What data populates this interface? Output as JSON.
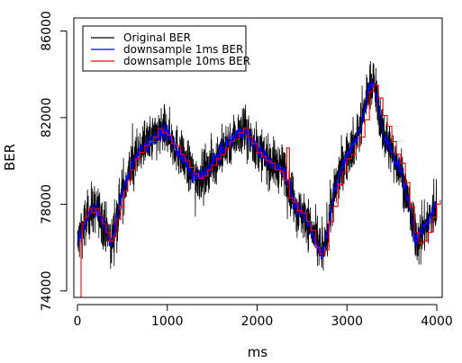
{
  "chart_data": {
    "type": "line",
    "title": "",
    "xlabel": "ms",
    "ylabel": "BER",
    "xlim": [
      -40,
      4060
    ],
    "ylim": [
      73700,
      86600
    ],
    "x_ticks": [
      0,
      1000,
      2000,
      3000,
      4000
    ],
    "x_tick_labels": [
      "0",
      "1000",
      "2000",
      "3000",
      "4000"
    ],
    "y_ticks": [
      74000,
      78000,
      82000,
      86000
    ],
    "y_tick_labels": [
      "74000",
      "78000",
      "82000",
      "86000"
    ],
    "grid": false,
    "legend_position": "top-left",
    "series": [
      {
        "name": "Original BER",
        "color": "#000000",
        "noise": 1100,
        "x": [
          0,
          60,
          100,
          150,
          200,
          260,
          300,
          350,
          380,
          420,
          500,
          600,
          700,
          800,
          900,
          950,
          1000,
          1100,
          1200,
          1300,
          1400,
          1500,
          1600,
          1700,
          1800,
          1850,
          1900,
          2000,
          2100,
          2200,
          2300,
          2350,
          2400,
          2450,
          2500,
          2600,
          2700,
          2750,
          2800,
          2900,
          3000,
          3100,
          3150,
          3200,
          3250,
          3300,
          3350,
          3400,
          3500,
          3600,
          3700,
          3750,
          3800,
          3900,
          4000
        ],
        "y": [
          76200,
          76900,
          77300,
          77700,
          77800,
          77500,
          77000,
          76400,
          76200,
          77000,
          78500,
          79800,
          80500,
          80900,
          81200,
          81400,
          81300,
          80600,
          79900,
          79300,
          79300,
          79900,
          80400,
          80900,
          81300,
          81400,
          81200,
          80600,
          80100,
          79800,
          79600,
          79000,
          78200,
          77700,
          77600,
          76900,
          75800,
          75900,
          77300,
          79200,
          80300,
          81000,
          81600,
          82400,
          83500,
          83600,
          82500,
          81300,
          80400,
          79600,
          77800,
          76500,
          76500,
          77200,
          78000
        ]
      },
      {
        "name": "downsample 1ms BER",
        "color": "#0000ff",
        "noise": 380,
        "x": [
          0,
          60,
          100,
          150,
          200,
          260,
          300,
          350,
          380,
          420,
          500,
          600,
          700,
          800,
          900,
          950,
          1000,
          1100,
          1200,
          1300,
          1400,
          1500,
          1600,
          1700,
          1800,
          1850,
          1900,
          2000,
          2100,
          2200,
          2300,
          2350,
          2400,
          2450,
          2500,
          2600,
          2700,
          2750,
          2800,
          2900,
          3000,
          3100,
          3150,
          3200,
          3250,
          3300,
          3350,
          3400,
          3500,
          3600,
          3700,
          3750,
          3800,
          3900,
          4000
        ],
        "y": [
          76200,
          76900,
          77300,
          77700,
          77800,
          77500,
          77000,
          76400,
          76200,
          77000,
          78500,
          79800,
          80500,
          80900,
          81200,
          81400,
          81300,
          80600,
          79900,
          79300,
          79300,
          79900,
          80400,
          80900,
          81300,
          81400,
          81200,
          80600,
          80100,
          79800,
          79600,
          79000,
          78200,
          77700,
          77600,
          76900,
          75800,
          75900,
          77300,
          79200,
          80300,
          81000,
          81600,
          82400,
          83500,
          83600,
          82500,
          81300,
          80400,
          79600,
          77800,
          76500,
          76500,
          77200,
          78000
        ]
      },
      {
        "name": "downsample 10ms BER",
        "color": "#ff0000",
        "step": true,
        "x": [
          0,
          40,
          50,
          80,
          120,
          160,
          200,
          240,
          280,
          320,
          360,
          400,
          440,
          480,
          520,
          560,
          600,
          650,
          700,
          750,
          800,
          850,
          900,
          950,
          1000,
          1050,
          1100,
          1150,
          1200,
          1250,
          1300,
          1350,
          1400,
          1450,
          1500,
          1550,
          1600,
          1650,
          1700,
          1750,
          1800,
          1850,
          1900,
          1950,
          2000,
          2050,
          2100,
          2150,
          2200,
          2250,
          2300,
          2330,
          2360,
          2400,
          2450,
          2500,
          2550,
          2600,
          2650,
          2700,
          2750,
          2800,
          2850,
          2900,
          2950,
          3000,
          3050,
          3100,
          3150,
          3200,
          3250,
          3300,
          3350,
          3400,
          3450,
          3500,
          3550,
          3600,
          3650,
          3700,
          3750,
          3800,
          3850,
          3900,
          3950,
          4000,
          4040
        ],
        "y": [
          73500,
          76200,
          77100,
          77400,
          77800,
          77600,
          77800,
          77500,
          77100,
          76700,
          76300,
          76500,
          77300,
          77900,
          78600,
          79100,
          79600,
          80100,
          80400,
          80700,
          80900,
          81100,
          81500,
          81300,
          81200,
          80800,
          80700,
          80300,
          80000,
          79700,
          79400,
          79200,
          79300,
          79600,
          79800,
          80100,
          80300,
          80600,
          80900,
          81000,
          81300,
          81500,
          81100,
          80800,
          80400,
          80200,
          80000,
          79900,
          79600,
          79500,
          79100,
          80600,
          78300,
          78100,
          77700,
          77600,
          77200,
          76800,
          76000,
          75700,
          75900,
          77200,
          77900,
          78900,
          79500,
          80100,
          80300,
          80700,
          81100,
          81900,
          83200,
          83500,
          82900,
          82100,
          81600,
          80900,
          80300,
          79900,
          79000,
          77900,
          76700,
          76200,
          76300,
          76700,
          77400,
          78000,
          78200
        ]
      }
    ]
  }
}
